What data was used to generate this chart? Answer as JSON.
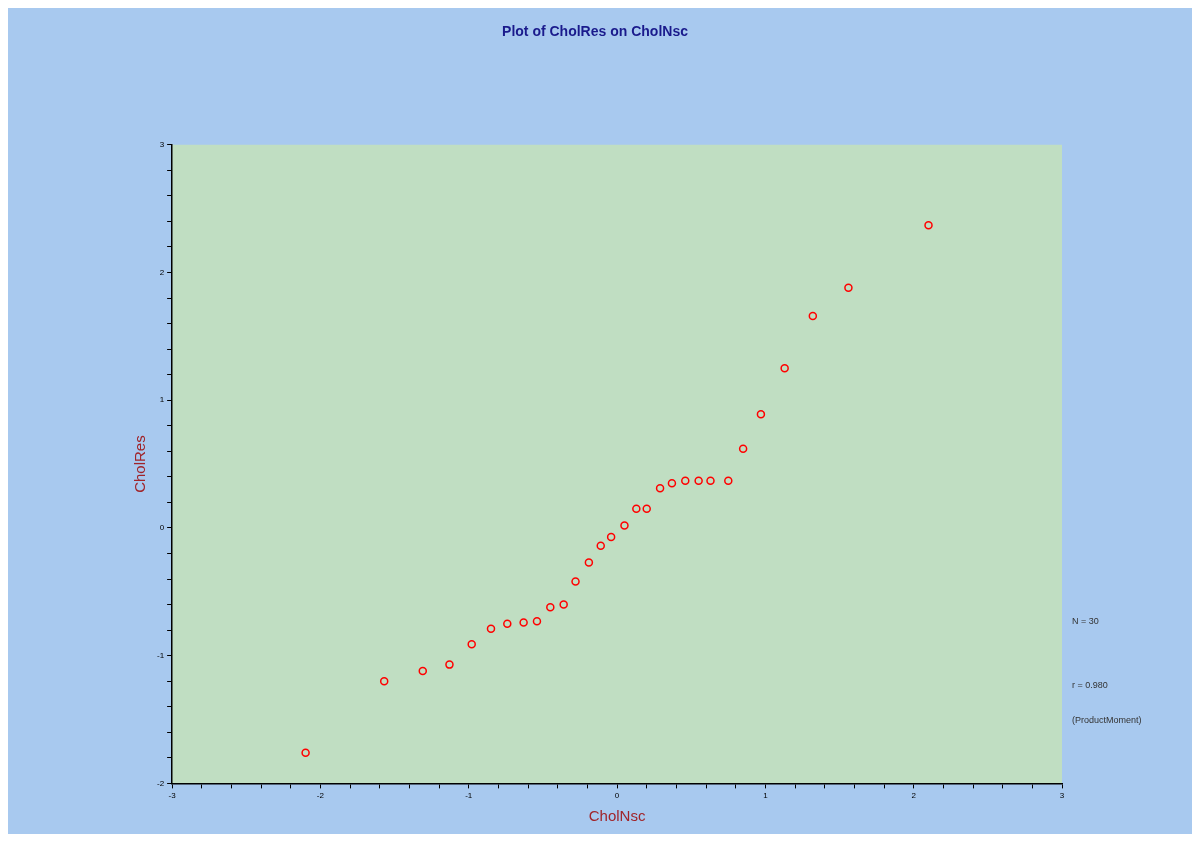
{
  "chart_data": {
    "type": "scatter",
    "title": "Plot of CholRes on CholNsc",
    "xlabel": "CholNsc",
    "ylabel": "CholRes",
    "annotations": [
      "N = 30",
      "r = 0.980",
      "(ProductMoment)"
    ],
    "x": [
      -2.1,
      -1.57,
      -1.31,
      -1.13,
      -0.98,
      -0.85,
      -0.74,
      -0.63,
      -0.54,
      -0.45,
      -0.36,
      -0.28,
      -0.19,
      -0.11,
      -0.04,
      0.05,
      0.13,
      0.2,
      0.29,
      0.37,
      0.46,
      0.55,
      0.63,
      0.75,
      0.85,
      0.97,
      1.13,
      1.32,
      1.56,
      2.1
    ],
    "series": [
      {
        "color": "#ff0000",
        "values": [
          -1.76,
          -1.2,
          -1.12,
          -1.07,
          -0.91,
          -0.79,
          -0.75,
          -0.74,
          -0.73,
          -0.62,
          -0.6,
          -0.42,
          -0.27,
          -0.14,
          -0.07,
          0.02,
          0.15,
          0.15,
          0.31,
          0.35,
          0.37,
          0.37,
          0.37,
          0.37,
          0.62,
          0.89,
          1.25,
          1.66,
          1.88,
          2.37
        ]
      }
    ],
    "marker": "circle",
    "grid": false,
    "legend": false,
    "xlim": [
      -3,
      3
    ],
    "ylim": [
      -2,
      3
    ],
    "xticks": [
      -3,
      {
        "value": -2.8,
        "label": null
      },
      {
        "value": -2.6,
        "label": null
      },
      {
        "value": -2.4,
        "label": null
      },
      {
        "value": -2.2,
        "label": null
      },
      -2,
      {
        "value": -1.8,
        "label": null
      },
      {
        "value": -1.6,
        "label": null
      },
      {
        "value": -1.4,
        "label": null
      },
      {
        "value": -1.2,
        "label": null
      },
      -1,
      {
        "value": -0.8,
        "label": null
      },
      {
        "value": -0.6,
        "label": null
      },
      {
        "value": -0.4,
        "label": null
      },
      {
        "value": -0.2,
        "label": null
      },
      0,
      {
        "value": 0.2,
        "label": null
      },
      {
        "value": 0.4,
        "label": null
      },
      {
        "value": 0.6,
        "label": null
      },
      {
        "value": 0.8,
        "label": null
      },
      1,
      {
        "value": 1.2,
        "label": null
      },
      {
        "value": 1.4,
        "label": null
      },
      {
        "value": 1.6,
        "label": null
      },
      {
        "value": 1.8,
        "label": null
      },
      2,
      {
        "value": 2.2,
        "label": null
      },
      {
        "value": 2.4,
        "label": null
      },
      {
        "value": 2.6,
        "label": null
      },
      {
        "value": 2.8,
        "label": null
      },
      3
    ],
    "yticks": [
      -2,
      {
        "value": -1.8,
        "label": null
      },
      {
        "value": -1.6,
        "label": null
      },
      {
        "value": -1.4,
        "label": null
      },
      {
        "value": -1.2,
        "label": null
      },
      -1,
      {
        "value": -0.8,
        "label": null
      },
      {
        "value": -0.6,
        "label": null
      },
      {
        "value": -0.4,
        "label": null
      },
      {
        "value": -0.2,
        "label": null
      },
      0,
      {
        "value": 0.2,
        "label": null
      },
      {
        "value": 0.4,
        "label": null
      },
      {
        "value": 0.6,
        "label": null
      },
      {
        "value": 0.8,
        "label": null
      },
      1,
      {
        "value": 1.2,
        "label": null
      },
      {
        "value": 1.4,
        "label": null
      },
      {
        "value": 1.6,
        "label": null
      },
      {
        "value": 1.8,
        "label": null
      },
      2,
      {
        "value": 2.2,
        "label": null
      },
      {
        "value": 2.4,
        "label": null
      },
      {
        "value": 2.6,
        "label": null
      },
      {
        "value": 2.8,
        "label": null
      },
      3
    ]
  }
}
